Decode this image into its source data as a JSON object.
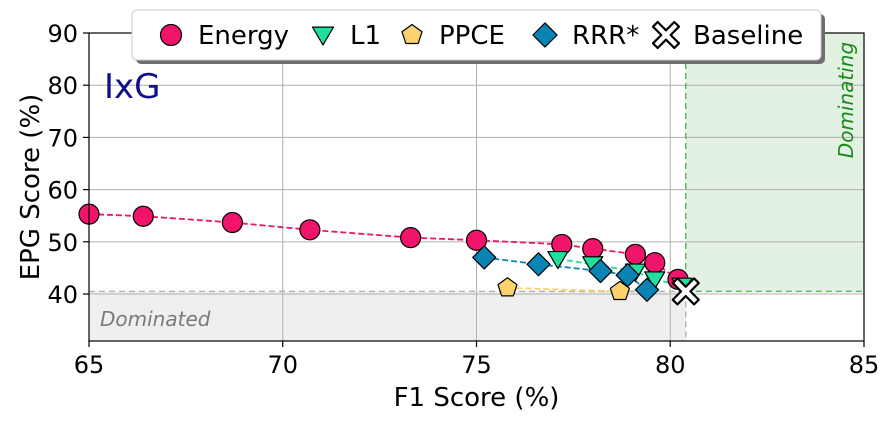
{
  "chart_data": {
    "type": "scatter",
    "panel_label": "IxG",
    "xlabel": "F1 Score (%)",
    "ylabel": "EPG Score (%)",
    "xlim": [
      65,
      85
    ],
    "ylim": [
      31,
      90
    ],
    "xticks": [
      65,
      70,
      75,
      80,
      85
    ],
    "yticks": [
      40,
      50,
      60,
      70,
      80,
      90
    ],
    "grid": true,
    "legend_position": "top-center",
    "baseline": {
      "name": "Baseline",
      "x": 80.4,
      "y": 40.5,
      "marker": "cross",
      "color": "#ffffff"
    },
    "regions": [
      {
        "label": "Dominating",
        "x_range": [
          80.4,
          85
        ],
        "y_range": [
          40.5,
          90
        ],
        "color": "#e2f1e2",
        "edge_color": "#5cb85c"
      },
      {
        "label": "Dominated",
        "x_range": [
          65,
          80.4
        ],
        "y_range": [
          31,
          40.5
        ],
        "color": "#efefef",
        "edge_color": "#b5b5b5"
      }
    ],
    "series": [
      {
        "name": "Energy",
        "marker": "circle",
        "color": "#f0146a",
        "points": [
          [
            65.0,
            55.3
          ],
          [
            66.4,
            54.9
          ],
          [
            68.7,
            53.7
          ],
          [
            70.7,
            52.3
          ],
          [
            73.3,
            50.8
          ],
          [
            75.0,
            50.3
          ],
          [
            77.2,
            49.5
          ],
          [
            78.0,
            48.7
          ],
          [
            79.1,
            47.6
          ],
          [
            79.6,
            46.0
          ],
          [
            80.2,
            42.8
          ]
        ]
      },
      {
        "name": "L1",
        "marker": "triangle-down",
        "color": "#1fe0a0",
        "points": [
          [
            77.1,
            46.7
          ],
          [
            78.0,
            45.7
          ],
          [
            79.1,
            44.3
          ],
          [
            79.6,
            42.8
          ],
          [
            80.3,
            41.6
          ]
        ]
      },
      {
        "name": "PPCE",
        "marker": "pentagon",
        "color": "#fdd26e",
        "points": [
          [
            75.8,
            41.2
          ],
          [
            78.7,
            40.5
          ]
        ]
      },
      {
        "name": "RRR*",
        "marker": "diamond",
        "color": "#0a84b5",
        "points": [
          [
            75.2,
            47.0
          ],
          [
            76.6,
            45.7
          ],
          [
            78.2,
            44.4
          ],
          [
            78.9,
            43.6
          ],
          [
            79.4,
            40.8
          ]
        ]
      }
    ]
  }
}
